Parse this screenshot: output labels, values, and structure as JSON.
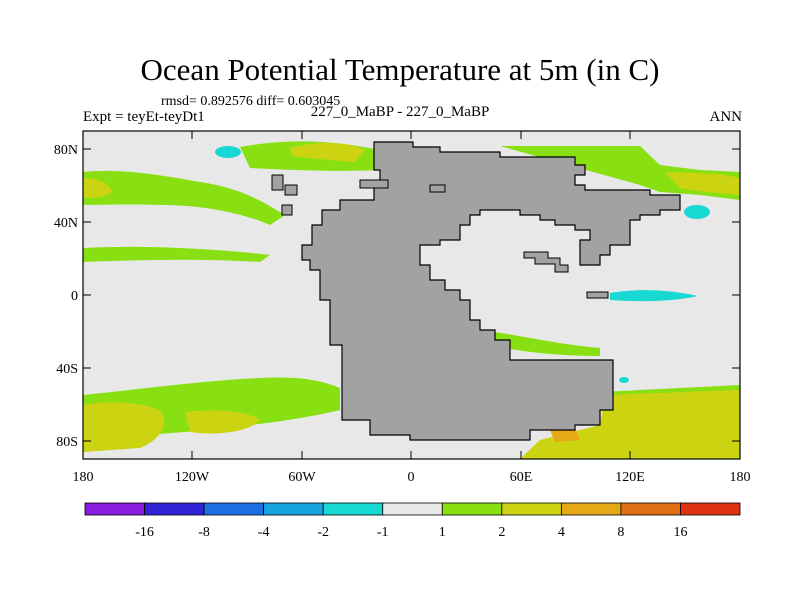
{
  "title": "Ocean Potential Temperature at 5m (in C)",
  "stats_line": "rmsd= 0.892576 diff= 0.603045",
  "expt_label": "Expt = teyEt-teyDt1",
  "case_label": "227_0_MaBP - 227_0_MaBP",
  "season": "ANN",
  "x_tick_labels": [
    "180",
    "120W",
    "60W",
    "0",
    "60E",
    "120E",
    "180"
  ],
  "y_tick_labels": [
    "80N",
    "40N",
    "0",
    "40S",
    "80S"
  ],
  "colorbar": {
    "labels": [
      "-16",
      "-8",
      "-4",
      "-2",
      "-1",
      "1",
      "2",
      "4",
      "8",
      "16"
    ],
    "colors": [
      "#8a1be0",
      "#3224d6",
      "#1f6ee3",
      "#16a4de",
      "#17d8d2",
      "#e8e8e8",
      "#88e012",
      "#ccd412",
      "#e5a817",
      "#e06f15",
      "#e03212"
    ]
  },
  "colors": {
    "land": "#a2a2a2",
    "background_ocean": "#e8e8e8",
    "band_green": "#88e012",
    "band_yellow": "#ccd412",
    "band_orange": "#e5a817",
    "band_cyan": "#17d8d2"
  }
}
